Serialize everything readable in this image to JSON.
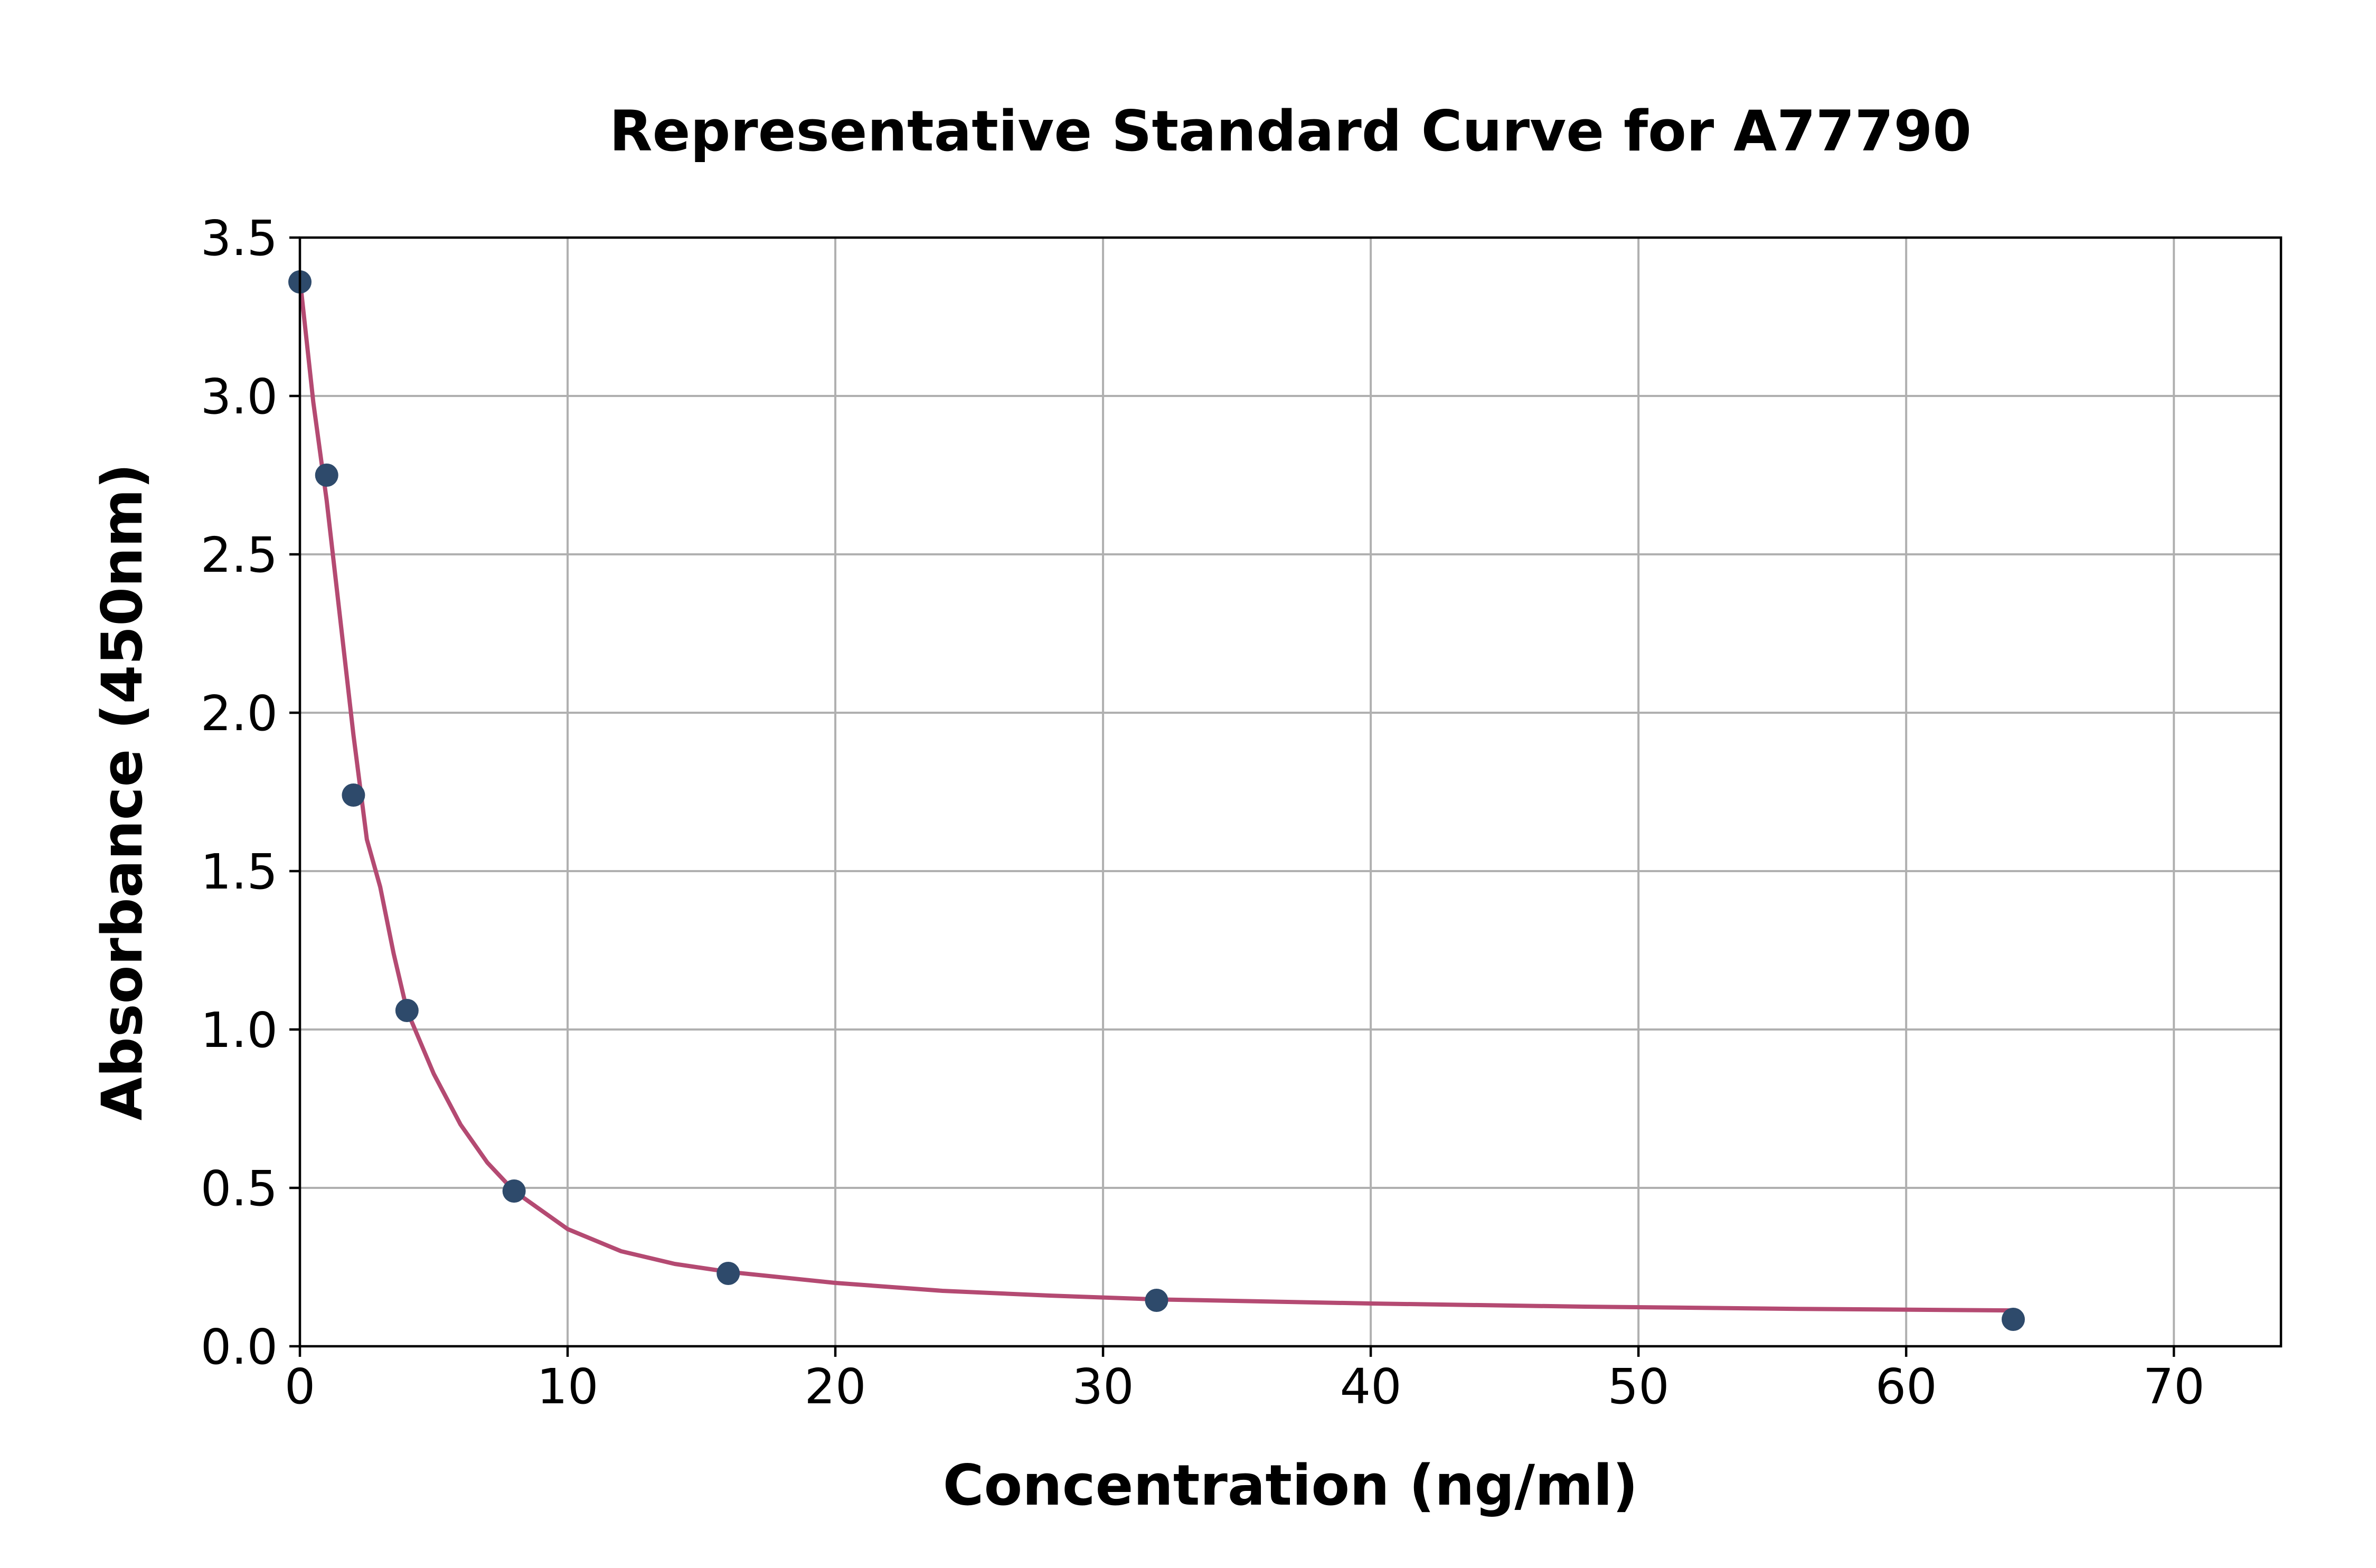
{
  "chart_data": {
    "type": "scatter",
    "title": "Representative Standard Curve for A77790",
    "xlabel": "Concentration (ng/ml)",
    "ylabel": "Absorbance (450nm)",
    "xlim": [
      0,
      74
    ],
    "ylim": [
      0,
      3.5
    ],
    "xticks": [
      0,
      10,
      20,
      30,
      40,
      50,
      60,
      70
    ],
    "xtick_labels": [
      "0",
      "10",
      "20",
      "30",
      "40",
      "50",
      "60",
      "70"
    ],
    "yticks": [
      0,
      0.5,
      1.0,
      1.5,
      2.0,
      2.5,
      3.0,
      3.5
    ],
    "ytick_labels": [
      "0.0",
      "0.5",
      "1.0",
      "1.5",
      "2.0",
      "2.5",
      "3.0",
      "3.5"
    ],
    "grid": true,
    "series": [
      {
        "kind": "points",
        "color": "#2e4a6b",
        "x": [
          0,
          1,
          2,
          4,
          8,
          16,
          32,
          64
        ],
        "y": [
          3.36,
          2.75,
          1.74,
          1.06,
          0.49,
          0.23,
          0.145,
          0.085
        ]
      },
      {
        "kind": "fitted-curve",
        "color": "#b44a72",
        "x": [
          0,
          0.5,
          1,
          1.5,
          2,
          2.5,
          3,
          3.5,
          4,
          5,
          6,
          7,
          8,
          10,
          12,
          14,
          16,
          20,
          24,
          28,
          32,
          40,
          48,
          56,
          64
        ],
        "y": [
          3.37,
          2.98,
          2.67,
          2.3,
          1.93,
          1.6,
          1.45,
          1.24,
          1.06,
          0.86,
          0.7,
          0.58,
          0.49,
          0.37,
          0.3,
          0.26,
          0.235,
          0.2,
          0.175,
          0.16,
          0.148,
          0.135,
          0.125,
          0.118,
          0.113
        ]
      }
    ]
  }
}
